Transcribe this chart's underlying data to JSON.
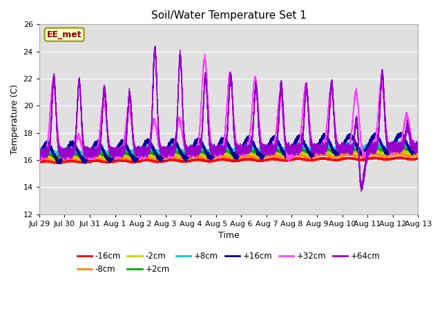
{
  "title": "Soil/Water Temperature Set 1",
  "xlabel": "Time",
  "ylabel": "Temperature (C)",
  "ylim": [
    12,
    26
  ],
  "yticks": [
    12,
    14,
    16,
    18,
    20,
    22,
    24,
    26
  ],
  "background_color": "#e0e0e0",
  "figure_color": "#ffffff",
  "annotation_text": "EE_met",
  "annotation_facecolor": "#ffffcc",
  "annotation_edgecolor": "#999900",
  "annotation_textcolor": "#880000",
  "series": [
    {
      "label": "-16cm",
      "color": "#ff0000"
    },
    {
      "label": "-8cm",
      "color": "#ff8800"
    },
    {
      "label": "-2cm",
      "color": "#cccc00"
    },
    {
      "label": "+2cm",
      "color": "#00aa00"
    },
    {
      "label": "+8cm",
      "color": "#00cccc"
    },
    {
      "label": "+16cm",
      "color": "#000099"
    },
    {
      "label": "+32cm",
      "color": "#ff44ff"
    },
    {
      "label": "+64cm",
      "color": "#9900cc"
    }
  ],
  "tick_labels": [
    "Jul 29",
    "Jul 30",
    "Jul 31",
    "Aug 1",
    "Aug 2",
    "Aug 3",
    "Aug 4",
    "Aug 5",
    "Aug 6",
    "Aug 7",
    "Aug 8",
    "Aug 9",
    "Aug 10",
    "Aug 11",
    "Aug 12",
    "Aug 13"
  ],
  "linewidth": 1.0
}
